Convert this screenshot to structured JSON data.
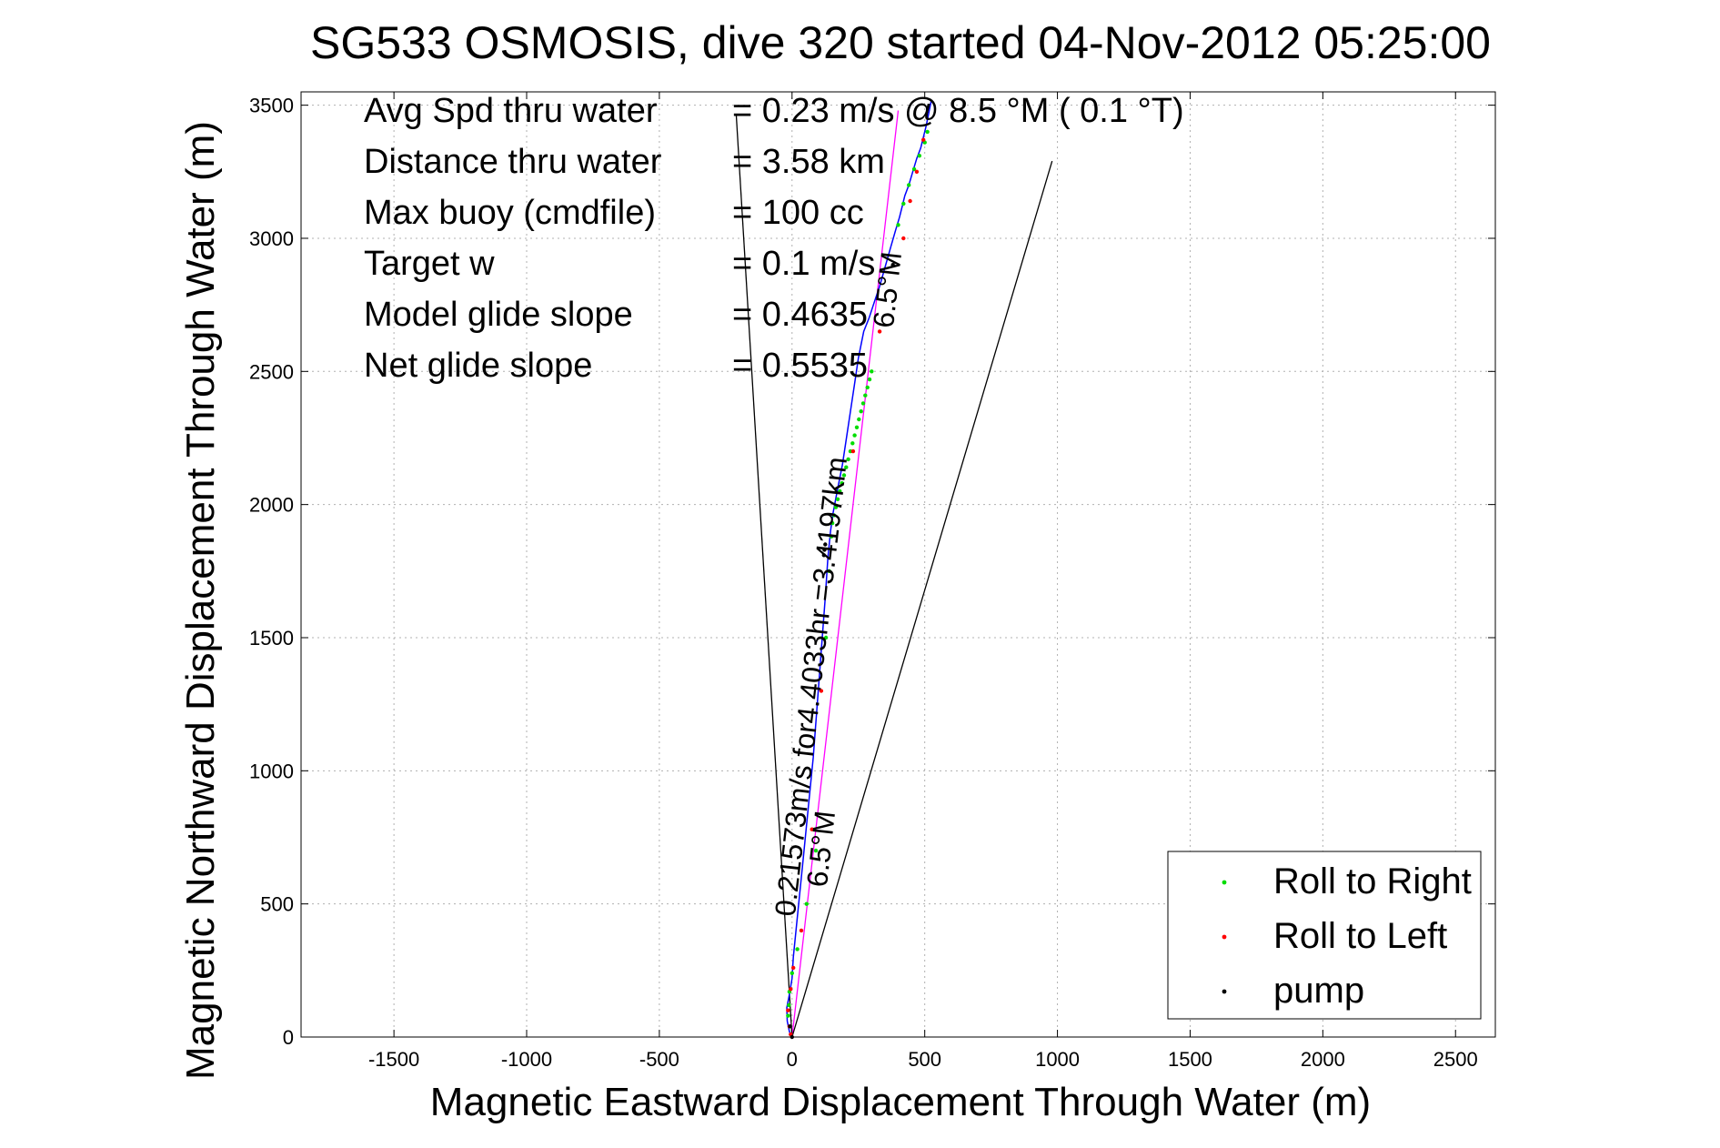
{
  "chart_data": {
    "type": "scatter",
    "title": "SG533 OSMOSIS, dive 320 started 04-Nov-2012 05:25:00",
    "xlabel": "Magnetic Eastward Displacement Through Water (m)",
    "ylabel": "Magnetic Northward Displacement Through Water (m)",
    "xlim": [
      -1850,
      2650
    ],
    "ylim": [
      0,
      3550
    ],
    "xticks": [
      -1500,
      -1000,
      -500,
      0,
      500,
      1000,
      1500,
      2000,
      2500
    ],
    "xtick_labels": [
      "-1500",
      "-1000",
      "-500",
      "0",
      "500",
      "1000",
      "1500",
      "2000",
      "2500"
    ],
    "yticks": [
      0,
      500,
      1000,
      1500,
      2000,
      2500,
      3000,
      3500
    ],
    "ytick_labels": [
      "0",
      "500",
      "1000",
      "1500",
      "2000",
      "2500",
      "3000",
      "3500"
    ],
    "grid": true,
    "legend_position": "bottom-right",
    "stats": [
      {
        "label": "Avg Spd thru water",
        "value": "=  0.23 m/s @   8.5 °M (  0.1 °T)"
      },
      {
        "label": "Distance thru water",
        "value": "=  3.58 km"
      },
      {
        "label": "Max buoy (cmdfile)",
        "value": "= 100 cc"
      },
      {
        "label": "Target w",
        "value": "= 0.1 m/s"
      },
      {
        "label": "Model glide slope",
        "value": "= 0.4635"
      },
      {
        "label": "Net glide slope",
        "value": "= 0.5535"
      }
    ],
    "annotations": [
      {
        "text": "0.21573m/s for4.4033hr =3.4197km",
        "x": 10,
        "y": 450,
        "angle_deg": 83.5
      },
      {
        "text": "6.5°M",
        "x": 130,
        "y": 560,
        "angle_deg": 83.5
      },
      {
        "text": "6.5°M",
        "x": 380,
        "y": 2660,
        "angle_deg": 83.5
      }
    ],
    "reference_lines": [
      {
        "name": "heading-line",
        "color": "#ff00ff",
        "points": [
          [
            0,
            0
          ],
          [
            400,
            3480
          ]
        ]
      },
      {
        "name": "left-wedge",
        "color": "#000000",
        "points": [
          [
            0,
            0
          ],
          [
            -210,
            3460
          ]
        ]
      },
      {
        "name": "right-wedge",
        "color": "#000000",
        "points": [
          [
            0,
            0
          ],
          [
            980,
            3290
          ]
        ]
      }
    ],
    "series": [
      {
        "name": "track",
        "marker": "line",
        "color": "#0000ff",
        "x": [
          0,
          -10,
          -18,
          -20,
          -10,
          0,
          5,
          20,
          40,
          60,
          80,
          95,
          110,
          125,
          135,
          145,
          155,
          170,
          190,
          205,
          220,
          235,
          250,
          270,
          290,
          310,
          330,
          350,
          370,
          390,
          405,
          415,
          425,
          440,
          455,
          470,
          485,
          495,
          505,
          515,
          525
        ],
        "y": [
          0,
          20,
          60,
          110,
          160,
          220,
          300,
          450,
          650,
          850,
          1050,
          1250,
          1450,
          1650,
          1800,
          1900,
          1970,
          2050,
          2150,
          2250,
          2350,
          2450,
          2550,
          2650,
          2700,
          2760,
          2820,
          2890,
          2960,
          3030,
          3080,
          3120,
          3160,
          3200,
          3250,
          3300,
          3340,
          3380,
          3420,
          3470,
          3520
        ]
      },
      {
        "name": "Roll to Right",
        "marker": "point",
        "color": "#00dd00",
        "x": [
          -15,
          -12,
          -10,
          0,
          20,
          55,
          90,
          128,
          140,
          148,
          152,
          158,
          165,
          172,
          180,
          188,
          196,
          204,
          212,
          220,
          228,
          236,
          244,
          252,
          260,
          268,
          276,
          284,
          292,
          300,
          400,
          420,
          440,
          460,
          480,
          500,
          510
        ],
        "y": [
          80,
          120,
          170,
          240,
          330,
          500,
          700,
          1500,
          1750,
          1880,
          1930,
          1960,
          1990,
          2020,
          2050,
          2080,
          2110,
          2140,
          2170,
          2200,
          2230,
          2260,
          2290,
          2320,
          2350,
          2380,
          2410,
          2440,
          2470,
          2500,
          3050,
          3130,
          3200,
          3260,
          3310,
          3360,
          3400
        ]
      },
      {
        "name": "Roll to Left",
        "marker": "point",
        "color": "#ff0000",
        "x": [
          -5,
          -10,
          -15,
          -5,
          5,
          35,
          75,
          110,
          230,
          330,
          420,
          445,
          470,
          495
        ],
        "y": [
          10,
          40,
          100,
          180,
          260,
          400,
          780,
          1300,
          2200,
          2650,
          3000,
          3140,
          3250,
          3370
        ]
      },
      {
        "name": "pump",
        "marker": "point",
        "color": "#000000",
        "x": [
          0,
          -8,
          120,
          122,
          125,
          380
        ],
        "y": [
          0,
          40,
          1810,
          1830,
          1850,
          2900
        ]
      }
    ]
  }
}
